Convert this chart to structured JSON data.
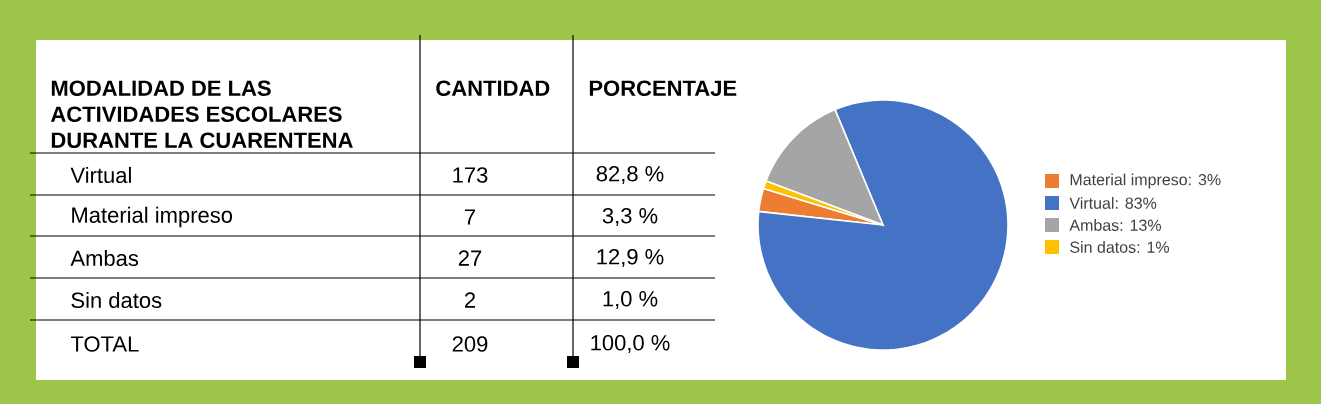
{
  "chart_data": {
    "type": "pie",
    "categories": [
      "Material impreso: 3%",
      "Virtual: 83%",
      "Ambas: 13%",
      "Sin datos: 1%"
    ],
    "values": [
      3,
      83,
      13,
      1
    ],
    "colors": [
      "#ed7d31",
      "#4472c4",
      "#a5a5a5",
      "#ffc000"
    ],
    "legend": "right",
    "annotations": [
      "MODALIDAD DE LAS ACTIVIDADES ESCOLARES DURANTE LA CUARENTENA",
      "CANTIDAD",
      "PORCENTAJE",
      "Virtual",
      "173",
      "82,8 %",
      "Material impreso",
      "7",
      "3,3 %",
      "Ambas",
      "27",
      "12,9 %",
      "Sin datos",
      "2",
      "1,0 %",
      "TOTAL",
      "209",
      "100,0 %"
    ]
  }
}
